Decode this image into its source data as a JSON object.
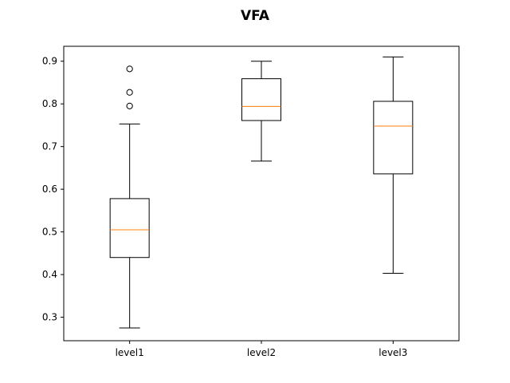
{
  "chart_data": {
    "type": "box",
    "title": "VFA",
    "xlabel": "",
    "ylabel": "",
    "categories": [
      "level1",
      "level2",
      "level3"
    ],
    "ylim": [
      0.245,
      0.935
    ],
    "yticks": [
      0.3,
      0.4,
      0.5,
      0.6,
      0.7,
      0.8,
      0.9
    ],
    "ytick_labels": [
      "0.3",
      "0.4",
      "0.5",
      "0.6",
      "0.7",
      "0.8",
      "0.9"
    ],
    "grid": false,
    "colors": {
      "box": "#000000",
      "median": "#ff7f0e",
      "whisker": "#000000",
      "outlier": "#000000"
    },
    "boxes": [
      {
        "name": "level1",
        "whisker_low": 0.275,
        "q1": 0.44,
        "median": 0.505,
        "q3": 0.578,
        "whisker_high": 0.753,
        "outliers": [
          0.795,
          0.827,
          0.882
        ]
      },
      {
        "name": "level2",
        "whisker_low": 0.666,
        "q1": 0.761,
        "median": 0.794,
        "q3": 0.859,
        "whisker_high": 0.9,
        "outliers": []
      },
      {
        "name": "level3",
        "whisker_low": 0.403,
        "q1": 0.636,
        "median": 0.748,
        "q3": 0.806,
        "whisker_high": 0.91,
        "outliers": []
      }
    ]
  }
}
